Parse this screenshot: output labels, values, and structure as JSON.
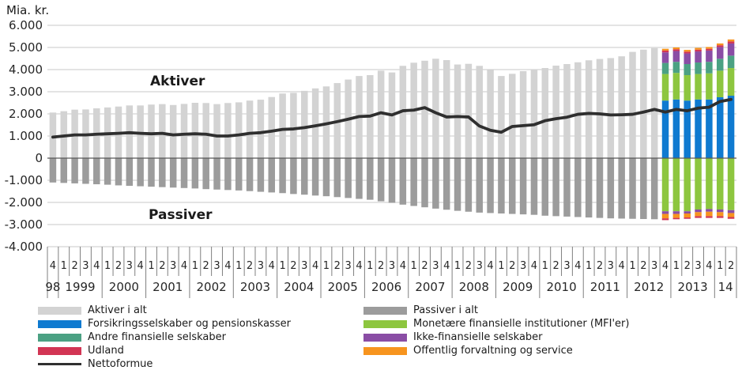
{
  "chart_data": {
    "type": "bar",
    "subtype": "stacked-bar-with-line",
    "unit_label": "Mia. kr.",
    "area_labels": {
      "assets": "Aktiver",
      "liabilities": "Passiver"
    },
    "y_axis": {
      "min": -4000,
      "max": 6000,
      "grid": true,
      "ticks": [
        {
          "label": "6.000",
          "value": 6000
        },
        {
          "label": "5.000",
          "value": 5000
        },
        {
          "label": "4.000",
          "value": 4000
        },
        {
          "label": "3.000",
          "value": 3000
        },
        {
          "label": "2.000",
          "value": 2000
        },
        {
          "label": "1.000",
          "value": 1000
        },
        {
          "label": "0",
          "value": 0
        },
        {
          "label": "-1.000",
          "value": -1000
        },
        {
          "label": "-2.000",
          "value": -2000
        },
        {
          "label": "-3.000",
          "value": -3000
        },
        {
          "label": "-4.000",
          "value": -4000
        }
      ]
    },
    "x_axis": {
      "quarter_labels": [
        "4",
        "1",
        "2",
        "3",
        "4",
        "1",
        "2",
        "3",
        "4",
        "1",
        "2",
        "3",
        "4",
        "1",
        "2",
        "3",
        "4",
        "1",
        "2",
        "3",
        "4",
        "1",
        "2",
        "3",
        "4",
        "1",
        "2",
        "3",
        "4",
        "1",
        "2",
        "3",
        "4",
        "1",
        "2",
        "3",
        "4",
        "1",
        "2",
        "3",
        "4",
        "1",
        "2",
        "3",
        "4",
        "1",
        "2",
        "3",
        "4",
        "1",
        "2",
        "3",
        "4",
        "1",
        "2",
        "3",
        "4",
        "1",
        "2",
        "3",
        "4",
        "1",
        "2"
      ],
      "year_groups": [
        {
          "label": "98",
          "quarters": 1
        },
        {
          "label": "1999",
          "quarters": 4
        },
        {
          "label": "2000",
          "quarters": 4
        },
        {
          "label": "2001",
          "quarters": 4
        },
        {
          "label": "2002",
          "quarters": 4
        },
        {
          "label": "2003",
          "quarters": 4
        },
        {
          "label": "2004",
          "quarters": 4
        },
        {
          "label": "2005",
          "quarters": 4
        },
        {
          "label": "2006",
          "quarters": 4
        },
        {
          "label": "2007",
          "quarters": 4
        },
        {
          "label": "2008",
          "quarters": 4
        },
        {
          "label": "2009",
          "quarters": 4
        },
        {
          "label": "2010",
          "quarters": 4
        },
        {
          "label": "2011",
          "quarters": 4
        },
        {
          "label": "2012",
          "quarters": 4
        },
        {
          "label": "2013",
          "quarters": 4
        },
        {
          "label": "14",
          "quarters": 2
        }
      ]
    },
    "totals": {
      "aktiver_i_alt": {
        "label": "Aktiver i alt",
        "color": "#d3d3d3",
        "values": [
          2060,
          2120,
          2190,
          2200,
          2250,
          2290,
          2330,
          2380,
          2380,
          2420,
          2440,
          2400,
          2450,
          2500,
          2490,
          2440,
          2490,
          2520,
          2600,
          2640,
          2760,
          2920,
          2950,
          3040,
          3150,
          3240,
          3390,
          3550,
          3710,
          3750,
          3950,
          3870,
          4170,
          4310,
          4400,
          4490,
          4430,
          4230,
          4260,
          4170,
          3990,
          3710,
          3810,
          3930,
          4020,
          4070,
          4180,
          4250,
          4330,
          4420,
          4480,
          4520,
          4600,
          4800,
          4900,
          4970
        ]
      },
      "passiver_i_alt": {
        "label": "Passiver i alt",
        "color": "#9c9c9c",
        "values": [
          -1100,
          -1120,
          -1140,
          -1160,
          -1180,
          -1200,
          -1230,
          -1250,
          -1270,
          -1290,
          -1310,
          -1330,
          -1350,
          -1370,
          -1400,
          -1420,
          -1440,
          -1460,
          -1490,
          -1520,
          -1550,
          -1580,
          -1620,
          -1650,
          -1690,
          -1720,
          -1760,
          -1800,
          -1840,
          -1880,
          -1950,
          -2020,
          -2100,
          -2160,
          -2220,
          -2280,
          -2330,
          -2380,
          -2420,
          -2460,
          -2480,
          -2500,
          -2520,
          -2540,
          -2560,
          -2600,
          -2620,
          -2640,
          -2660,
          -2680,
          -2700,
          -2720,
          -2730,
          -2740,
          -2750,
          -2760
        ]
      }
    },
    "sector_start_index": 56,
    "sectors": [
      {
        "id": "forsikring",
        "label": "Forsikringsselskaber og pensionskasser",
        "color": "#0f7ad0",
        "assets": [
          2600,
          2650,
          2600,
          2650,
          2650,
          2750,
          2820
        ],
        "liabilities": [
          0,
          0,
          0,
          0,
          0,
          0,
          0
        ]
      },
      {
        "id": "mfi",
        "label": "Monetære finansielle institutioner (MFI'er)",
        "color": "#8dc63f",
        "assets": [
          1200,
          1200,
          1150,
          1150,
          1180,
          1200,
          1250
        ],
        "liabilities": [
          -2400,
          -2400,
          -2400,
          -2320,
          -2300,
          -2320,
          -2350
        ]
      },
      {
        "id": "andre",
        "label": "Andre finansielle selskaber",
        "color": "#4ba183",
        "assets": [
          500,
          500,
          500,
          520,
          520,
          540,
          560
        ],
        "liabilities": [
          0,
          0,
          0,
          0,
          0,
          0,
          0
        ]
      },
      {
        "id": "ikke",
        "label": "Ikke-finansielle selskaber",
        "color": "#8a4da5",
        "assets": [
          480,
          490,
          480,
          500,
          510,
          530,
          550
        ],
        "liabilities": [
          -120,
          -120,
          -100,
          -120,
          -120,
          -120,
          -130
        ]
      },
      {
        "id": "udland",
        "label": "Udland",
        "color": "#d23554",
        "assets": [
          80,
          80,
          80,
          80,
          80,
          80,
          90
        ],
        "liabilities": [
          -80,
          -60,
          -60,
          -80,
          -80,
          -80,
          -80
        ]
      },
      {
        "id": "offentlig",
        "label": "Offentlig forvaltning og service",
        "color": "#f7941e",
        "assets": [
          80,
          80,
          80,
          80,
          80,
          80,
          90
        ],
        "liabilities": [
          -200,
          -180,
          -180,
          -180,
          -200,
          -180,
          -180
        ]
      }
    ],
    "liability_stack_order": [
      "mfi",
      "ikke",
      "offentlig",
      "udland"
    ],
    "nettoformue": {
      "label": "Nettoformue",
      "color": "#2f2f2f",
      "values": [
        950,
        1000,
        1050,
        1050,
        1080,
        1100,
        1120,
        1150,
        1120,
        1100,
        1120,
        1050,
        1080,
        1100,
        1080,
        1000,
        1000,
        1050,
        1120,
        1150,
        1220,
        1300,
        1320,
        1380,
        1460,
        1550,
        1650,
        1760,
        1880,
        1900,
        2050,
        1950,
        2140,
        2170,
        2280,
        2050,
        1860,
        1880,
        1860,
        1450,
        1260,
        1170,
        1430,
        1470,
        1510,
        1690,
        1780,
        1850,
        1980,
        2020,
        2000,
        1950,
        1960,
        1980,
        2080,
        2200,
        2080,
        2200,
        2140,
        2260,
        2300,
        2560,
        2650
      ]
    },
    "style": {
      "gridline_color": "#c9c9c9",
      "zero_line_color": "#595959",
      "axis_tick_color": "#7f7f7f",
      "text_color": "#262626"
    }
  },
  "legend": {
    "columns": [
      [
        {
          "id": "aktiver-i-alt",
          "label": "Aktiver i alt",
          "color": "#d3d3d3",
          "swatch": "box"
        },
        {
          "id": "forsikring",
          "label": "Forsikringsselskaber og pensionskasser",
          "color": "#0f7ad0",
          "swatch": "box"
        },
        {
          "id": "andre",
          "label": "Andre finansielle selskaber",
          "color": "#4ba183",
          "swatch": "box"
        },
        {
          "id": "udland",
          "label": "Udland",
          "color": "#d23554",
          "swatch": "box"
        },
        {
          "id": "nettoformue",
          "label": "Nettoformue",
          "color": "#2f2f2f",
          "swatch": "line"
        }
      ],
      [
        {
          "id": "passiver-i-alt",
          "label": "Passiver i alt",
          "color": "#9c9c9c",
          "swatch": "box"
        },
        {
          "id": "mfi",
          "label": "Monetære finansielle institutioner (MFI'er)",
          "color": "#8dc63f",
          "swatch": "box"
        },
        {
          "id": "ikke",
          "label": "Ikke-finansielle selskaber",
          "color": "#8a4da5",
          "swatch": "box"
        },
        {
          "id": "offentlig",
          "label": "Offentlig forvaltning og service",
          "color": "#f7941e",
          "swatch": "box"
        }
      ]
    ]
  }
}
